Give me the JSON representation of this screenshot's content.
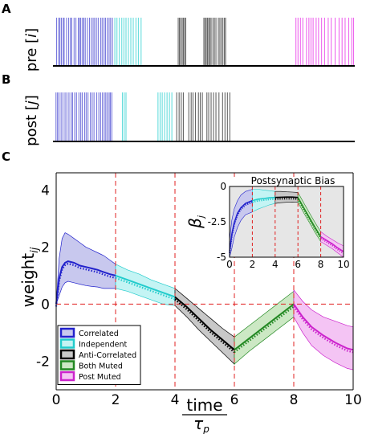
{
  "panels": {
    "a": {
      "letter": "A",
      "ylabel_prefix": "pre [",
      "ylabel_var": "i",
      "ylabel_suffix": "]"
    },
    "b": {
      "letter": "B",
      "ylabel_prefix": "post [",
      "ylabel_var": "j",
      "ylabel_suffix": "]"
    },
    "c": {
      "letter": "C"
    }
  },
  "colors": {
    "correlated": "#2222cc",
    "correlated_fill": "#c8c8ee",
    "independent": "#22cccc",
    "independent_fill": "#c4f4f4",
    "anticorrelated": "#000000",
    "anticorrelated_fill": "#c8c8c8",
    "bothmuted": "#228822",
    "bothmuted_fill": "#cce8c4",
    "postmuted": "#cc22cc",
    "postmuted_fill": "#f4c4f4",
    "grid": "#e02020",
    "raster_blue": "#7777dd",
    "raster_cyan": "#66dddd",
    "raster_gray": "#666666",
    "raster_magenta": "#ee66ee"
  },
  "rasters": {
    "pre": {
      "correlated": [
        0.12,
        0.19,
        0.23,
        0.28,
        0.34,
        0.37,
        0.45,
        0.52,
        0.58,
        0.62,
        0.7,
        0.76,
        0.84,
        0.88,
        0.92,
        0.98,
        1.02,
        1.07,
        1.14,
        1.21,
        1.27,
        1.33,
        1.38,
        1.44,
        1.5,
        1.58,
        1.63,
        1.69,
        1.74,
        1.8,
        1.86,
        1.91,
        1.97
      ],
      "independent": [
        2.05,
        2.12,
        2.2,
        2.28,
        2.35,
        2.42,
        2.5,
        2.58,
        2.66,
        2.75,
        2.83,
        2.92
      ],
      "anticorrelated": [
        4.15,
        4.19,
        4.23,
        4.28,
        4.32,
        4.36,
        4.4,
        5.0,
        5.04,
        5.08,
        5.12,
        5.16,
        5.2,
        5.24,
        5.3,
        5.35,
        5.4,
        5.48,
        5.53,
        5.58,
        5.63,
        5.68,
        5.72
      ],
      "postmuted": [
        8.05,
        8.12,
        8.2,
        8.28,
        8.4,
        8.48,
        8.55,
        8.62,
        8.72,
        8.8,
        8.9,
        9.0,
        9.12,
        9.22,
        9.35,
        9.48,
        9.58,
        9.68,
        9.8,
        9.9,
        9.96
      ]
    },
    "post": {
      "correlated": [
        0.1,
        0.15,
        0.2,
        0.27,
        0.33,
        0.4,
        0.46,
        0.53,
        0.6,
        0.65,
        0.72,
        0.78,
        0.86,
        0.92,
        0.97,
        1.05,
        1.1,
        1.16,
        1.24,
        1.3,
        1.36,
        1.45,
        1.52,
        1.58,
        1.64,
        1.7,
        1.75,
        1.8,
        1.86,
        1.9,
        1.95
      ],
      "independent": [
        2.3,
        2.36,
        2.42,
        3.48,
        3.55,
        3.62,
        3.7,
        3.78,
        3.86,
        3.94
      ],
      "anticorrelated": [
        4.1,
        4.18,
        4.25,
        4.32,
        4.5,
        4.58,
        4.64,
        4.72,
        4.82,
        4.88,
        4.95,
        5.1,
        5.16,
        5.24,
        5.32,
        5.4,
        5.5,
        5.62,
        5.7,
        5.78,
        5.86
      ]
    }
  },
  "chart_data": [
    {
      "type": "line",
      "x_ticks": [
        0,
        2,
        4,
        6,
        8,
        10
      ],
      "y_ticks": [
        -2,
        0,
        2,
        4
      ],
      "xlim": [
        0,
        10
      ],
      "ylim": [
        -3,
        4.6
      ],
      "ylabel_base": "weight",
      "ylabel_sub": "ij",
      "xlabel_num": "time",
      "xlabel_den_base": "τ",
      "xlabel_den_sub": "p",
      "grid": "dashed red at x=0,2,4,6,8,10 and y=0",
      "legend": {
        "position": "bottom-left",
        "entries": [
          "Correlated",
          "Independent",
          "Anti-Correlated",
          "Both Muted",
          "Post Muted"
        ]
      },
      "series": [
        {
          "name": "Correlated",
          "x": [
            0.0,
            0.1,
            0.2,
            0.3,
            0.4,
            0.6,
            0.8,
            1.0,
            1.2,
            1.4,
            1.6,
            1.8,
            2.0
          ],
          "mean": [
            0.0,
            0.9,
            1.3,
            1.45,
            1.5,
            1.45,
            1.35,
            1.3,
            1.25,
            1.2,
            1.12,
            1.05,
            1.0
          ],
          "upper": [
            0.0,
            1.6,
            2.3,
            2.5,
            2.45,
            2.3,
            2.15,
            2.0,
            1.9,
            1.8,
            1.7,
            1.55,
            1.4
          ],
          "lower": [
            0.0,
            0.3,
            0.6,
            0.75,
            0.8,
            0.75,
            0.7,
            0.65,
            0.62,
            0.6,
            0.55,
            0.55,
            0.55
          ]
        },
        {
          "name": "Independent",
          "x": [
            2.0,
            2.4,
            2.8,
            3.2,
            3.6,
            4.0
          ],
          "mean": [
            1.0,
            0.85,
            0.7,
            0.55,
            0.4,
            0.25
          ],
          "upper": [
            1.4,
            1.2,
            1.05,
            0.85,
            0.7,
            0.55
          ],
          "lower": [
            0.55,
            0.45,
            0.3,
            0.15,
            0.0,
            -0.05
          ]
        },
        {
          "name": "Anti-Correlated",
          "x": [
            4.0,
            4.4,
            4.8,
            5.2,
            5.6,
            6.0
          ],
          "mean": [
            0.25,
            -0.1,
            -0.5,
            -0.9,
            -1.25,
            -1.6
          ],
          "upper": [
            0.55,
            0.2,
            -0.15,
            -0.5,
            -0.85,
            -1.15
          ],
          "lower": [
            -0.05,
            -0.45,
            -0.9,
            -1.3,
            -1.7,
            -2.1
          ]
        },
        {
          "name": "Both Muted",
          "x": [
            6.0,
            6.5,
            7.0,
            7.5,
            8.0
          ],
          "mean": [
            -1.6,
            -1.2,
            -0.8,
            -0.4,
            0.0
          ],
          "upper": [
            -1.15,
            -0.75,
            -0.35,
            0.05,
            0.45
          ],
          "lower": [
            -2.1,
            -1.65,
            -1.25,
            -0.85,
            -0.45
          ]
        },
        {
          "name": "Post Muted",
          "x": [
            8.0,
            8.3,
            8.6,
            9.0,
            9.4,
            9.8,
            10.0
          ],
          "mean": [
            0.0,
            -0.45,
            -0.8,
            -1.1,
            -1.35,
            -1.55,
            -1.6
          ],
          "upper": [
            0.5,
            0.1,
            -0.2,
            -0.45,
            -0.6,
            -0.75,
            -0.8
          ],
          "lower": [
            -0.45,
            -1.0,
            -1.45,
            -1.8,
            -2.05,
            -2.25,
            -2.3
          ]
        }
      ]
    },
    {
      "type": "line",
      "title": "Postsynaptic Bias",
      "ylabel_base": "β",
      "ylabel_sub": "j",
      "x_ticks": [
        0,
        2,
        4,
        6,
        8,
        10
      ],
      "y_ticks": [
        0,
        -2.5,
        -5
      ],
      "xlim": [
        0,
        10
      ],
      "ylim": [
        -5,
        0
      ],
      "series": [
        {
          "name": "Correlated",
          "x": [
            0.0,
            0.2,
            0.4,
            0.7,
            1.0,
            1.4,
            2.0
          ],
          "mean": [
            -4.6,
            -3.4,
            -2.6,
            -1.9,
            -1.5,
            -1.2,
            -1.0
          ],
          "upper": [
            -3.8,
            -2.4,
            -1.6,
            -1.0,
            -0.6,
            -0.35,
            -0.2
          ],
          "lower": [
            -5.0,
            -4.4,
            -3.6,
            -2.9,
            -2.4,
            -2.0,
            -1.8
          ]
        },
        {
          "name": "Independent",
          "x": [
            2.0,
            2.5,
            3.0,
            3.5,
            4.0
          ],
          "mean": [
            -1.0,
            -0.9,
            -0.85,
            -0.8,
            -0.78
          ],
          "upper": [
            -0.2,
            -0.2,
            -0.25,
            -0.3,
            -0.35
          ],
          "lower": [
            -1.8,
            -1.6,
            -1.45,
            -1.3,
            -1.2
          ]
        },
        {
          "name": "Anti-Correlated",
          "x": [
            4.0,
            4.5,
            5.0,
            5.5,
            6.0
          ],
          "mean": [
            -0.78,
            -0.76,
            -0.75,
            -0.75,
            -0.78
          ],
          "upper": [
            -0.35,
            -0.35,
            -0.38,
            -0.4,
            -0.42
          ],
          "lower": [
            -1.2,
            -1.15,
            -1.12,
            -1.1,
            -1.12
          ]
        },
        {
          "name": "Both Muted",
          "x": [
            6.0,
            6.5,
            7.0,
            7.5,
            8.0
          ],
          "mean": [
            -0.78,
            -1.5,
            -2.2,
            -2.9,
            -3.55
          ],
          "upper": [
            -0.42,
            -1.15,
            -1.85,
            -2.55,
            -3.2
          ],
          "lower": [
            -1.12,
            -1.85,
            -2.55,
            -3.25,
            -3.9
          ]
        },
        {
          "name": "Post Muted",
          "x": [
            8.0,
            8.5,
            9.0,
            9.5,
            10.0
          ],
          "mean": [
            -3.55,
            -3.8,
            -4.05,
            -4.35,
            -4.6
          ],
          "upper": [
            -3.2,
            -3.5,
            -3.75,
            -4.0,
            -4.2
          ],
          "lower": [
            -3.9,
            -4.15,
            -4.4,
            -4.7,
            -5.0
          ]
        }
      ]
    }
  ]
}
